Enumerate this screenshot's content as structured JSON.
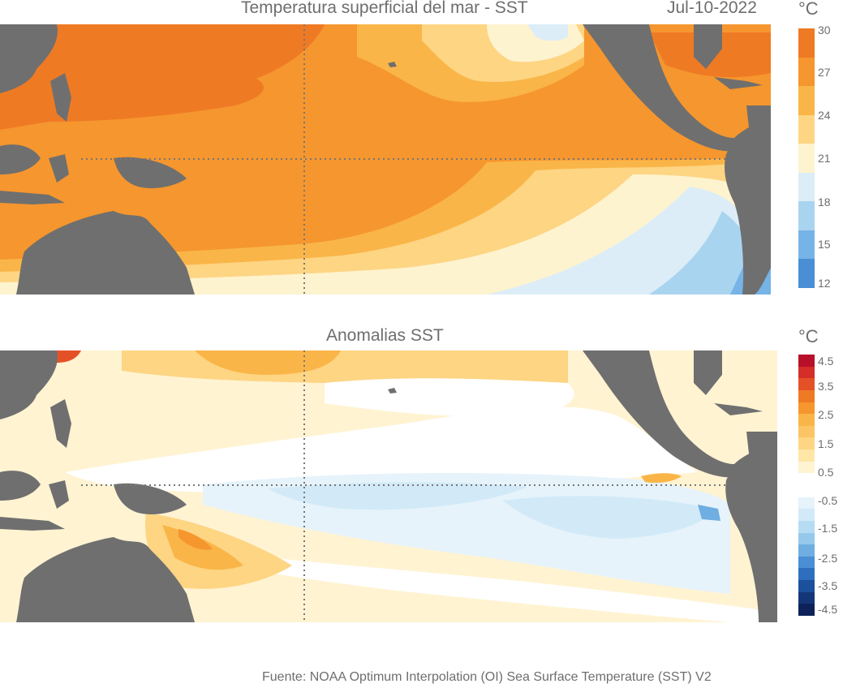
{
  "top_map": {
    "title": "Temperatura superficial del mar - SST",
    "date": "Jul-10-2022",
    "unit": "°C",
    "colorbar": {
      "labels": [
        "30",
        "27",
        "24",
        "21",
        "18",
        "15",
        "12"
      ],
      "colors": [
        "#ef7a24",
        "#f5962e",
        "#fab548",
        "#fdd583",
        "#fef3cf",
        "#dcedf7",
        "#a9d4f0",
        "#76b3e6",
        "#4a8ed6"
      ]
    }
  },
  "bottom_map": {
    "title": "Anomalias SST",
    "unit": "°C",
    "colorbar": {
      "labels": [
        "4.5",
        "3.5",
        "2.5",
        "1.5",
        "0.5",
        "-0.5",
        "-1.5",
        "-2.5",
        "-3.5",
        "-4.5"
      ],
      "colors": [
        "#b8102a",
        "#d52d27",
        "#e55127",
        "#ef7a24",
        "#f5962e",
        "#fab548",
        "#fbc464",
        "#fdd583",
        "#fee6a6",
        "#fff3d2",
        "#ffffff",
        "#ffffff",
        "#e6f3fb",
        "#d2eaf8",
        "#b5dcf3",
        "#95c9ec",
        "#6faee1",
        "#4a8ed6",
        "#2d6fbe",
        "#1c4f9c",
        "#143678",
        "#0d2258"
      ]
    }
  },
  "source": "Fuente: NOAA Optimum Interpolation (OI) Sea Surface Temperature (SST) V2"
}
